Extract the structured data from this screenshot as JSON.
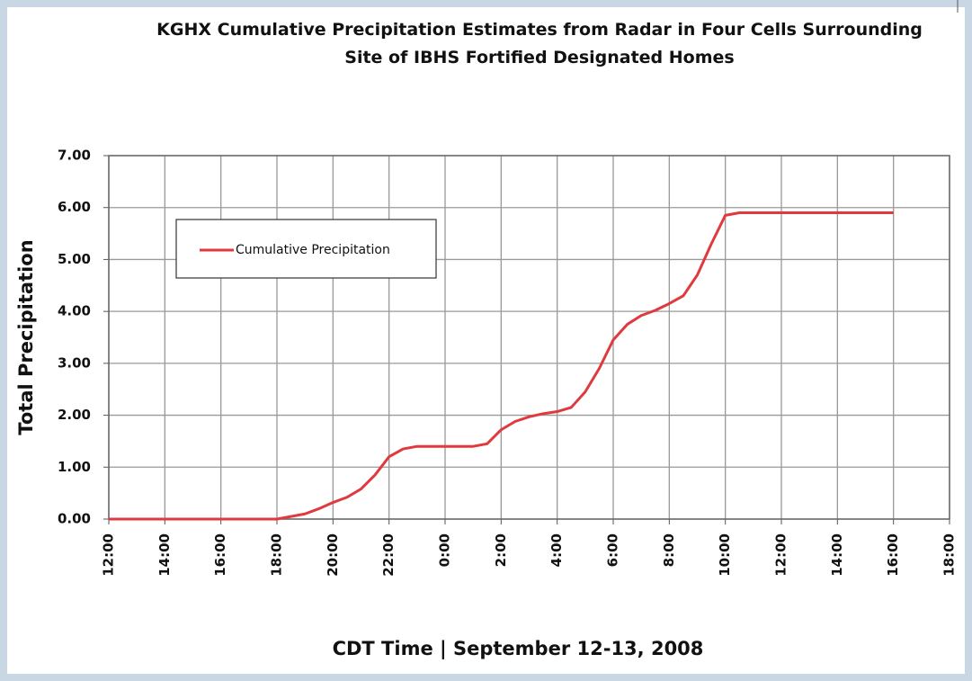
{
  "chart_data": {
    "type": "line",
    "title": "KGHX Cumulative Precipitation Estimates from Radar in Four Cells Surrounding Site of IBHS Fortified Designated Homes",
    "x_label": "CDT Time | September 12-13, 2008",
    "y_label": "Total Precipitation",
    "x": [
      0,
      6,
      6.5,
      7,
      7.5,
      8,
      8.5,
      9,
      9.5,
      10,
      10.5,
      11,
      12,
      13,
      13.5,
      14,
      14.5,
      15,
      15.5,
      16,
      16.5,
      17,
      17.5,
      18,
      18.5,
      19,
      19.5,
      20,
      20.5,
      21,
      21.5,
      22,
      22.5,
      24,
      28
    ],
    "series": [
      {
        "name": "Cumulative Precipitation",
        "color": "#e0393e",
        "values": [
          0,
          0,
          0.05,
          0.1,
          0.2,
          0.32,
          0.42,
          0.58,
          0.85,
          1.2,
          1.35,
          1.4,
          1.4,
          1.4,
          1.45,
          1.72,
          1.88,
          1.97,
          2.03,
          2.07,
          2.15,
          2.45,
          2.9,
          3.45,
          3.75,
          3.92,
          4.02,
          4.15,
          4.3,
          4.7,
          5.3,
          5.85,
          5.9,
          5.9,
          5.9
        ]
      }
    ],
    "xlim": [
      0,
      30
    ],
    "xticks": [
      {
        "value": 0,
        "label": "12:00"
      },
      {
        "value": 2,
        "label": "14:00"
      },
      {
        "value": 4,
        "label": "16:00"
      },
      {
        "value": 6,
        "label": "18:00"
      },
      {
        "value": 8,
        "label": "20:00"
      },
      {
        "value": 10,
        "label": "22:00"
      },
      {
        "value": 12,
        "label": "0:00"
      },
      {
        "value": 14,
        "label": "2:00"
      },
      {
        "value": 16,
        "label": "4:00"
      },
      {
        "value": 18,
        "label": "6:00"
      },
      {
        "value": 20,
        "label": "8:00"
      },
      {
        "value": 22,
        "label": "10:00"
      },
      {
        "value": 24,
        "label": "12:00"
      },
      {
        "value": 26,
        "label": "14:00"
      },
      {
        "value": 28,
        "label": "16:00"
      },
      {
        "value": 30,
        "label": "18:00"
      }
    ],
    "ylim": [
      0,
      7
    ],
    "yticks": [
      {
        "value": 0,
        "label": "0.00"
      },
      {
        "value": 1,
        "label": "1.00"
      },
      {
        "value": 2,
        "label": "2.00"
      },
      {
        "value": 3,
        "label": "3.00"
      },
      {
        "value": 4,
        "label": "4.00"
      },
      {
        "value": 5,
        "label": "5.00"
      },
      {
        "value": 6,
        "label": "6.00"
      },
      {
        "value": 7,
        "label": "7.00"
      }
    ],
    "grid": true,
    "legend": "upper left"
  }
}
